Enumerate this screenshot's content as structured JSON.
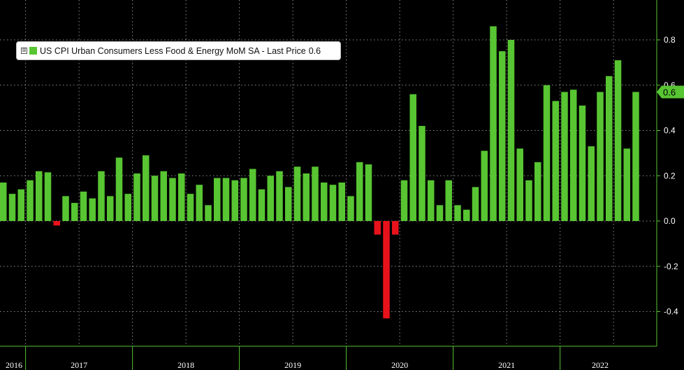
{
  "chart_data": {
    "type": "bar",
    "legend": {
      "toggle_symbol": "⊞",
      "label": "US CPI Urban Consumers Less Food & Energy MoM SA - Last Price",
      "last_value": "0.6"
    },
    "last_price_tag": "0.6",
    "colors": {
      "positive": "#58c532",
      "negative": "#e8121b",
      "last_tag_bg": "#58c532",
      "axis": "#58c532",
      "grid": "#8c8c8c",
      "text": "#ffffff"
    },
    "ylim": [
      -0.56,
      0.97
    ],
    "yticks": [
      {
        "value": 0.8,
        "label": "0.8"
      },
      {
        "value": 0.6,
        "label": "0.6"
      },
      {
        "value": 0.4,
        "label": "0.4"
      },
      {
        "value": 0.2,
        "label": "0.2"
      },
      {
        "value": 0.0,
        "label": "0.0"
      },
      {
        "value": -0.2,
        "label": "-0.2"
      },
      {
        "value": -0.4,
        "label": "-0.4"
      }
    ],
    "year_labels": [
      "2016",
      "2017",
      "2018",
      "2019",
      "2020",
      "2021",
      "2022"
    ],
    "start": "2016-10",
    "values": [
      0.17,
      0.12,
      0.14,
      0.18,
      0.22,
      0.215,
      -0.02,
      0.11,
      0.08,
      0.13,
      0.1,
      0.22,
      0.11,
      0.28,
      0.12,
      0.21,
      0.29,
      0.2,
      0.22,
      0.19,
      0.21,
      0.12,
      0.16,
      0.07,
      0.19,
      0.19,
      0.18,
      0.19,
      0.23,
      0.14,
      0.2,
      0.22,
      0.15,
      0.24,
      0.21,
      0.24,
      0.17,
      0.16,
      0.17,
      0.11,
      0.26,
      0.25,
      -0.06,
      -0.43,
      -0.06,
      0.18,
      0.56,
      0.42,
      0.18,
      0.07,
      0.18,
      0.07,
      0.05,
      0.15,
      0.31,
      0.86,
      0.75,
      0.8,
      0.32,
      0.18,
      0.26,
      0.6,
      0.53,
      0.57,
      0.58,
      0.51,
      0.33,
      0.57,
      0.64,
      0.71,
      0.32,
      0.57
    ]
  }
}
